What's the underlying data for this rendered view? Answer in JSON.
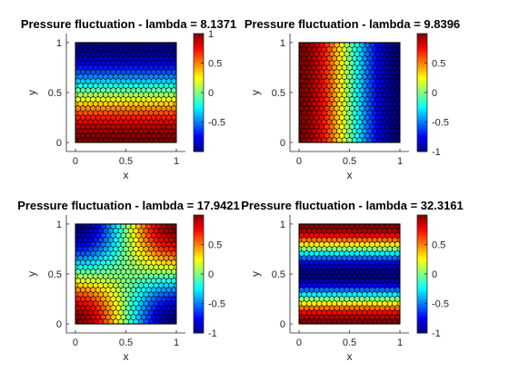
{
  "chart_data": [
    {
      "type": "heatmap",
      "title": "Pressure fluctuation - lambda = 8.1371",
      "xlabel": "x",
      "ylabel": "y",
      "xlim": [
        0,
        1
      ],
      "ylim": [
        0,
        1
      ],
      "xticks": [
        "0",
        "0.5",
        "1"
      ],
      "yticks": [
        "0",
        "0.5",
        "1"
      ],
      "colorbar": {
        "limits": [
          -1,
          1
        ],
        "ticks": [
          "1",
          "0.5",
          "0",
          "-0.5"
        ],
        "colormap": "jet"
      },
      "field": "cos(pi*y)"
    },
    {
      "type": "heatmap",
      "title": "Pressure fluctuation - lambda = 9.8396",
      "xlabel": "x",
      "ylabel": "y",
      "xlim": [
        0,
        1
      ],
      "ylim": [
        0,
        1
      ],
      "xticks": [
        "0",
        "0.5",
        "1"
      ],
      "yticks": [
        "0",
        "0.5",
        "1"
      ],
      "colorbar": {
        "limits": [
          -1,
          1
        ],
        "ticks": [
          "0.5",
          "0",
          "-0.5",
          "-1"
        ],
        "colormap": "jet"
      },
      "field": "cos(pi*x)"
    },
    {
      "type": "heatmap",
      "title": "Pressure fluctuation - lambda = 17.9421",
      "xlabel": "x",
      "ylabel": "y",
      "xlim": [
        0,
        1
      ],
      "ylim": [
        0,
        1
      ],
      "xticks": [
        "0",
        "0.5",
        "1"
      ],
      "yticks": [
        "0",
        "0.5",
        "1"
      ],
      "colorbar": {
        "limits": [
          -1,
          1
        ],
        "ticks": [
          "0.5",
          "0",
          "-0.5",
          "-1"
        ],
        "colormap": "jet"
      },
      "field": "cos(pi*x)*cos(pi*y)"
    },
    {
      "type": "heatmap",
      "title": "Pressure fluctuation - lambda = 32.3161",
      "xlabel": "x",
      "ylabel": "y",
      "xlim": [
        0,
        1
      ],
      "ylim": [
        0,
        1
      ],
      "xticks": [
        "0",
        "0.5",
        "1"
      ],
      "yticks": [
        "0",
        "0.5",
        "1"
      ],
      "colorbar": {
        "limits": [
          -1,
          1
        ],
        "ticks": [
          "0.5",
          "0",
          "-0.5",
          "-1"
        ],
        "colormap": "jet"
      },
      "field": "cos(2*pi*y)"
    }
  ]
}
